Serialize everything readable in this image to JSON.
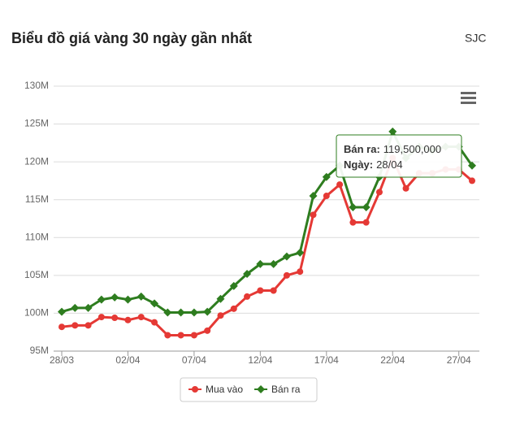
{
  "chart_data": {
    "type": "line",
    "title": "Biểu đồ giá vàng 30 ngày gần nhất",
    "brand": "SJC",
    "categories": [
      "28/03",
      null,
      null,
      null,
      null,
      "02/04",
      null,
      null,
      null,
      null,
      "07/04",
      null,
      null,
      null,
      null,
      "12/04",
      null,
      null,
      null,
      null,
      "17/04",
      null,
      null,
      null,
      null,
      "22/04",
      null,
      null,
      null,
      null,
      "27/04",
      null
    ],
    "series": [
      {
        "name": "Mua vào",
        "color": "#e53935",
        "marker": "circle",
        "values": [
          98200000,
          98400000,
          98400000,
          99500000,
          99400000,
          99100000,
          99500000,
          98800000,
          97100000,
          97100000,
          97100000,
          97700000,
          99700000,
          100600000,
          102200000,
          103000000,
          103000000,
          105000000,
          105500000,
          113000000,
          115500000,
          117000000,
          112000000,
          112000000,
          116000000,
          120500000,
          116500000,
          118500000,
          118500000,
          119000000,
          119000000,
          117500000
        ]
      },
      {
        "name": "Bán ra",
        "color": "#2e7d1f",
        "marker": "diamond",
        "values": [
          100200000,
          100700000,
          100700000,
          101800000,
          102100000,
          101800000,
          102200000,
          101300000,
          100100000,
          100100000,
          100100000,
          100200000,
          101900000,
          103600000,
          105200000,
          106500000,
          106500000,
          107500000,
          108000000,
          115500000,
          118000000,
          119500000,
          114000000,
          114000000,
          118000000,
          124000000,
          120500000,
          122000000,
          121500000,
          122000000,
          122000000,
          119500000
        ]
      }
    ],
    "ylim": [
      95000000,
      130000000
    ],
    "yticks": [
      {
        "value": 95000000,
        "label": "95M"
      },
      {
        "value": 100000000,
        "label": "100M"
      },
      {
        "value": 105000000,
        "label": "105M"
      },
      {
        "value": 110000000,
        "label": "110M"
      },
      {
        "value": 115000000,
        "label": "115M"
      },
      {
        "value": 120000000,
        "label": "120M"
      },
      {
        "value": 125000000,
        "label": "125M"
      },
      {
        "value": 130000000,
        "label": "130M"
      }
    ],
    "grid": true,
    "legend": "bottom",
    "tooltip": {
      "lines": [
        {
          "label": "Bán ra:",
          "value": "119,500,000"
        },
        {
          "label": "Ngày:",
          "value": "28/04"
        }
      ]
    }
  }
}
